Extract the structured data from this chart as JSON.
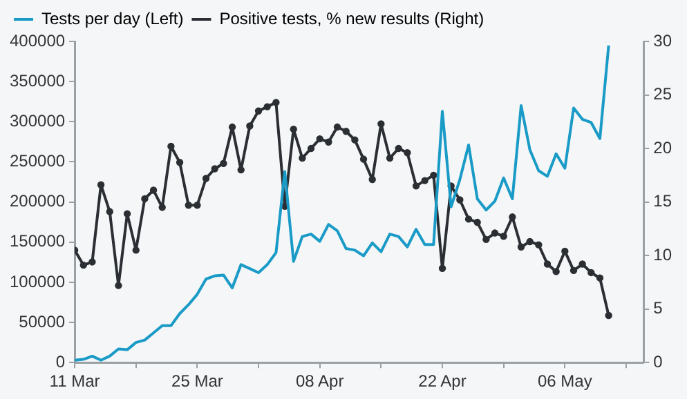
{
  "chart_data": {
    "type": "line",
    "x": [
      "--03-11",
      "--03-12",
      "--03-13",
      "--03-14",
      "--03-15",
      "--03-16",
      "--03-17",
      "--03-18",
      "--03-19",
      "--03-20",
      "--03-21",
      "--03-22",
      "--03-23",
      "--03-24",
      "--03-25",
      "--03-26",
      "--03-27",
      "--03-28",
      "--03-29",
      "--03-30",
      "--03-31",
      "--04-01",
      "--04-02",
      "--04-03",
      "--04-04",
      "--04-05",
      "--04-06",
      "--04-07",
      "--04-08",
      "--04-09",
      "--04-10",
      "--04-11",
      "--04-12",
      "--04-13",
      "--04-14",
      "--04-15",
      "--04-16",
      "--04-17",
      "--04-18",
      "--04-19",
      "--04-20",
      "--04-21",
      "--04-22",
      "--04-23",
      "--04-24",
      "--04-25",
      "--04-26",
      "--04-27",
      "--04-28",
      "--04-29",
      "--04-30",
      "--05-01",
      "--05-02",
      "--05-03",
      "--05-04",
      "--05-05",
      "--05-06",
      "--05-07",
      "--05-08",
      "--05-09",
      "--05-10",
      "--05-11"
    ],
    "series": [
      {
        "name": "Tests per day (Left)",
        "color": "#1a9bc7",
        "marker": "none",
        "values": [
          3000,
          4000,
          8000,
          3000,
          8000,
          17000,
          16000,
          25000,
          28000,
          37000,
          46000,
          46000,
          61000,
          72000,
          85000,
          104000,
          108000,
          109000,
          93000,
          122000,
          117000,
          112000,
          122000,
          137000,
          238000,
          126000,
          157000,
          160000,
          151000,
          172000,
          164000,
          142000,
          140000,
          133000,
          149000,
          138000,
          160000,
          157000,
          144000,
          166000,
          147000,
          147000,
          313000,
          194000,
          228000,
          271000,
          204000,
          190000,
          201000,
          230000,
          204000,
          320000,
          265000,
          239000,
          232000,
          260000,
          242000,
          317000,
          303000,
          299000,
          279000,
          395000
        ]
      },
      {
        "name": "Positive tests, % new results (Right)",
        "color": "#2b2f33",
        "marker": "circle",
        "axis": "y2",
        "values": [
          10.5,
          9.1,
          9.4,
          16.6,
          14.1,
          7.2,
          13.9,
          10.5,
          15.3,
          16.1,
          14.5,
          20.2,
          18.7,
          14.7,
          14.7,
          17.2,
          18.1,
          18.6,
          22.0,
          18.0,
          22.1,
          23.5,
          23.9,
          24.3,
          14.6,
          21.8,
          19.1,
          20.0,
          20.9,
          20.6,
          22.0,
          21.6,
          20.8,
          19.0,
          17.1,
          22.3,
          19.1,
          20.0,
          19.6,
          16.5,
          17.0,
          17.5,
          8.8,
          16.5,
          15.2,
          13.4,
          13.1,
          11.5,
          12.1,
          11.8,
          13.6,
          10.8,
          11.3,
          11.0,
          9.2,
          8.5,
          10.4,
          8.6,
          9.2,
          8.4,
          7.9,
          4.4
        ]
      }
    ],
    "xlim": [
      "--03-11",
      "--05-15"
    ],
    "xticks": [
      {
        "value": "--03-11",
        "label": "11 Mar"
      },
      {
        "value": "--03-18",
        "label": null
      },
      {
        "value": "--03-25",
        "label": "25 Mar"
      },
      {
        "value": "--04-01",
        "label": null
      },
      {
        "value": "--04-08",
        "label": "08 Apr"
      },
      {
        "value": "--04-15",
        "label": null
      },
      {
        "value": "--04-22",
        "label": "22 Apr"
      },
      {
        "value": "--04-29",
        "label": null
      },
      {
        "value": "--05-06",
        "label": "06 May"
      },
      {
        "value": "--05-13",
        "label": null
      }
    ],
    "ylim": [
      0,
      400000
    ],
    "yticks": [
      0,
      50000,
      100000,
      150000,
      200000,
      250000,
      300000,
      350000,
      400000
    ],
    "y2lim": [
      0,
      30
    ],
    "y2ticks": [
      0,
      5,
      10,
      15,
      20,
      25,
      30
    ],
    "grid": false,
    "legend": "top left",
    "line_style": "solid"
  }
}
